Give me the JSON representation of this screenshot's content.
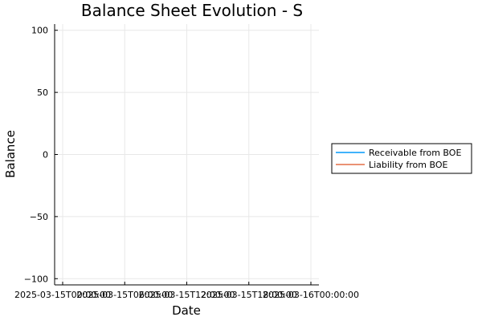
{
  "chart_data": {
    "type": "line",
    "title": "Balance Sheet Evolution - S",
    "xlabel": "Date",
    "ylabel": "Balance",
    "x_ticks": [
      "2025-03-15T00:00:00",
      "2025-03-15T06:00:00",
      "2025-03-15T12:00:00",
      "2025-03-15T18:00:00",
      "2025-03-16T00:00:00"
    ],
    "y_ticks": [
      100,
      50,
      0,
      -50,
      -100
    ],
    "y_tick_labels": [
      "100",
      "50",
      "0",
      "−50",
      "−100"
    ],
    "ylim": [
      -105,
      105
    ],
    "grid": true,
    "legend_position": "outer-right",
    "series": [
      {
        "name": "Receivable from BOE",
        "color": "#009AFA",
        "x": [],
        "y": []
      },
      {
        "name": "Liability from BOE",
        "color": "#E36F47",
        "x": [],
        "y": []
      }
    ]
  }
}
